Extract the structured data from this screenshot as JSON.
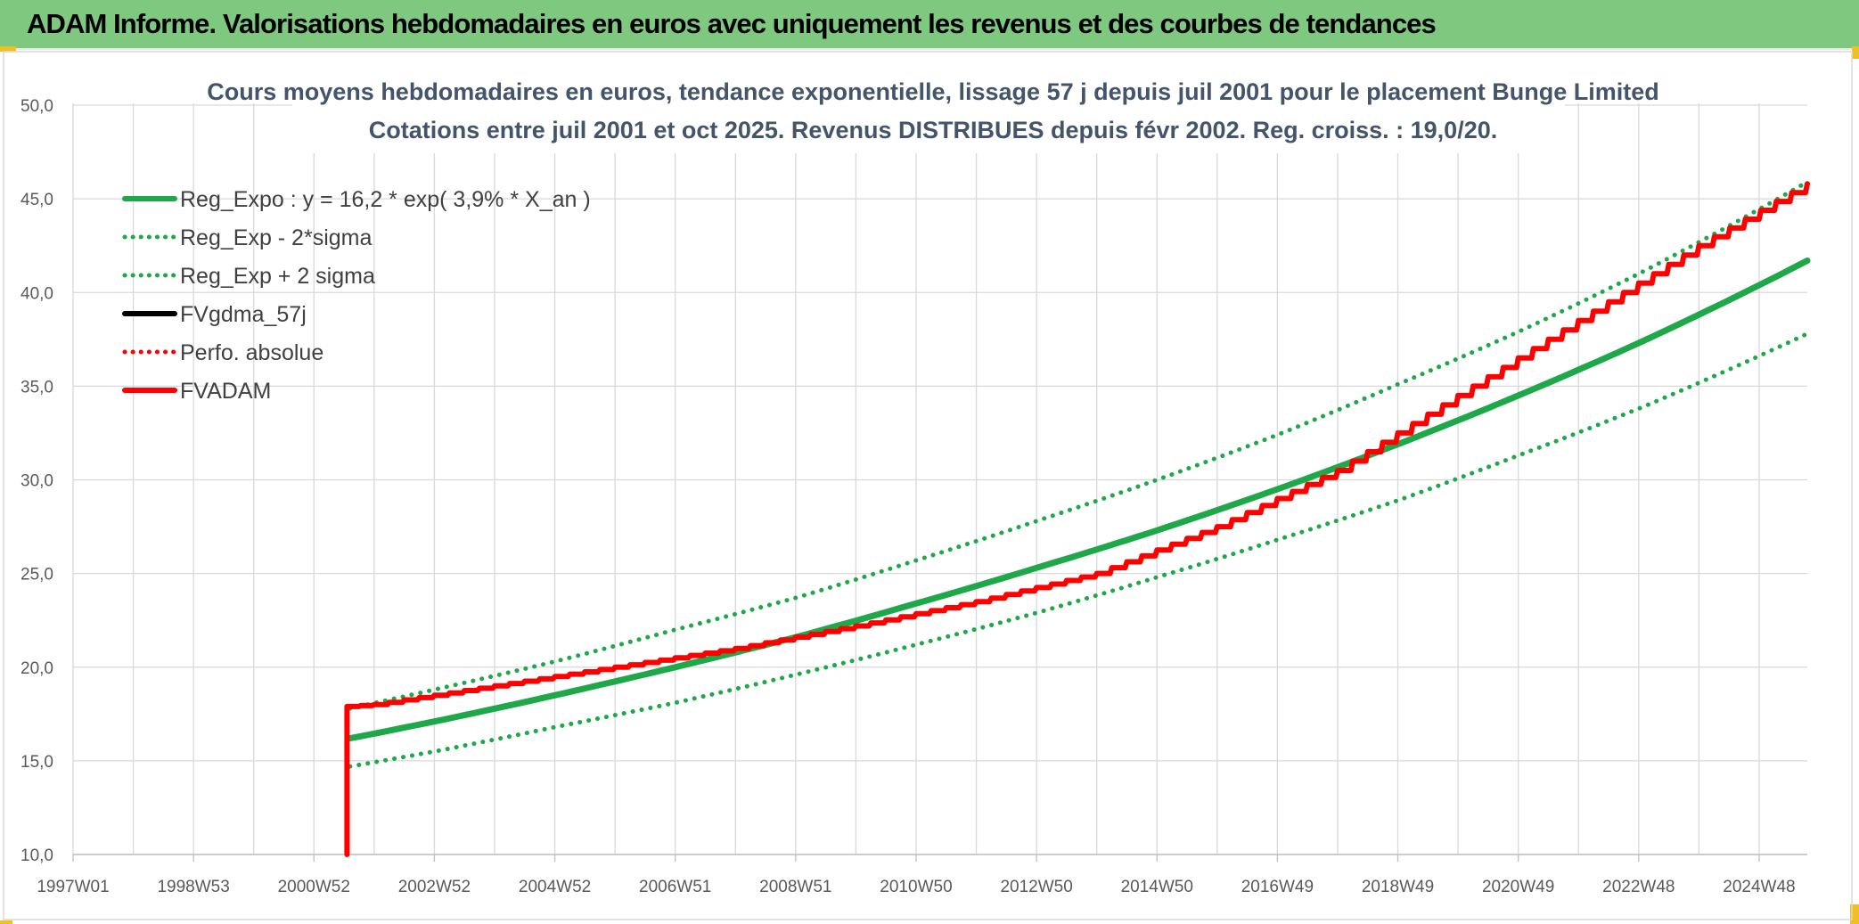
{
  "header": {
    "title": "ADAM Informe. Valorisations hebdomadaires en euros avec uniquement les revenus et des courbes de tendances"
  },
  "chart_data": {
    "type": "line",
    "title_lines": [
      "Cours moyens hebdomadaires en euros, tendance exponentielle, lissage 57 j depuis juil 2001 pour le placement Bunge Limited",
      "Cotations entre juil 2001 et oct 2025. Revenus DISTRIBUES depuis févr 2002. Reg. croiss. : 19,0/20."
    ],
    "xlabel": "",
    "ylabel": "",
    "x_ticks": [
      "1997W01",
      "1998W53",
      "2000W52",
      "2002W52",
      "2004W52",
      "2006W51",
      "2008W51",
      "2010W50",
      "2012W50",
      "2014W50",
      "2016W49",
      "2018W49",
      "2020W49",
      "2022W48",
      "2024W48"
    ],
    "xlim": [
      1997.0,
      2025.8
    ],
    "ylim": [
      10,
      50
    ],
    "y_ticks": [
      "10,0",
      "15,0",
      "20,0",
      "25,0",
      "30,0",
      "35,0",
      "40,0",
      "45,0",
      "50,0"
    ],
    "grid": true,
    "legend_position": "top-left",
    "series": [
      {
        "name": "Reg_Expo : y = 16,2 * exp( 3,9% *  X_an )",
        "color": "#1fa84a",
        "style": "solid",
        "x": [
          2001.6,
          2003,
          2005,
          2007,
          2009,
          2011,
          2013,
          2015,
          2017,
          2019,
          2021,
          2023,
          2025.8
        ],
        "y": [
          16.2,
          17.1,
          18.5,
          20.0,
          21.6,
          23.4,
          25.3,
          27.3,
          29.5,
          31.9,
          34.5,
          37.3,
          41.7
        ]
      },
      {
        "name": "Reg_Exp - 2*sigma",
        "color": "#1fa84a",
        "style": "dotted",
        "x": [
          2001.6,
          2003,
          2005,
          2007,
          2009,
          2011,
          2013,
          2015,
          2017,
          2019,
          2021,
          2023,
          2025.8
        ],
        "y": [
          14.7,
          15.5,
          16.8,
          18.1,
          19.6,
          21.2,
          22.9,
          24.8,
          26.8,
          28.9,
          31.3,
          33.8,
          37.8
        ]
      },
      {
        "name": "Reg_Exp + 2 sigma",
        "color": "#1fa84a",
        "style": "dotted",
        "x": [
          2001.6,
          2003,
          2005,
          2007,
          2009,
          2011,
          2013,
          2015,
          2017,
          2019,
          2021,
          2023,
          2025.8
        ],
        "y": [
          17.8,
          18.8,
          20.3,
          22.0,
          23.7,
          25.7,
          27.8,
          30.0,
          32.4,
          35.1,
          37.9,
          41.0,
          45.9
        ]
      },
      {
        "name": "FVgdma_57j",
        "color": "#000000",
        "style": "solid",
        "x": [],
        "y": []
      },
      {
        "name": "Perfo. absolue",
        "color": "#ff0000",
        "style": "dotted",
        "x": [],
        "y": []
      },
      {
        "name": "FVADAM",
        "color": "#ff0000",
        "style": "solid",
        "x": [
          2001.55,
          2001.55,
          2002,
          2004,
          2006,
          2008,
          2010,
          2012,
          2014,
          2016,
          2018,
          2020,
          2022,
          2024,
          2025.8
        ],
        "y": [
          10.0,
          17.9,
          18.0,
          19.0,
          20.0,
          21.0,
          22.2,
          23.5,
          25.0,
          27.5,
          30.5,
          34.5,
          38.5,
          42.5,
          45.8
        ]
      }
    ]
  }
}
